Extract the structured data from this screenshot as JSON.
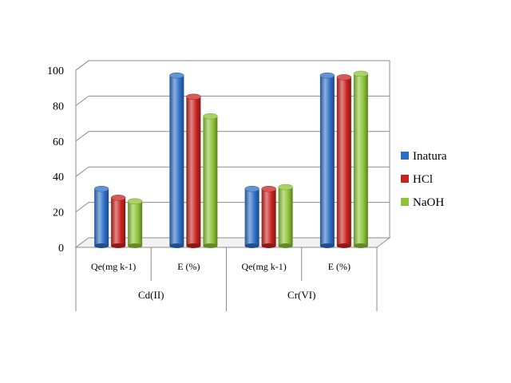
{
  "chart_data": {
    "type": "bar",
    "title": "",
    "xlabel": "",
    "ylabel": "",
    "ylim": [
      0,
      100
    ],
    "yticks": [
      "0",
      "20",
      "40",
      "60",
      "80",
      "100"
    ],
    "grid": true,
    "legend_position": "right",
    "groups": [
      "Cd(II)",
      "Cr(VI)"
    ],
    "categories": [
      "Qe(mg k-1)",
      "E (%)",
      "Qe(mg k-1)",
      "E (%)"
    ],
    "series": [
      {
        "name": "Inatura",
        "color": "#2e6fc6",
        "values": [
          33,
          97,
          33,
          97
        ]
      },
      {
        "name": "HCl",
        "color": "#c8231f",
        "values": [
          28,
          85,
          33,
          96
        ]
      },
      {
        "name": "NaOH",
        "color": "#8cc436",
        "values": [
          26,
          74,
          34,
          98
        ]
      }
    ]
  }
}
